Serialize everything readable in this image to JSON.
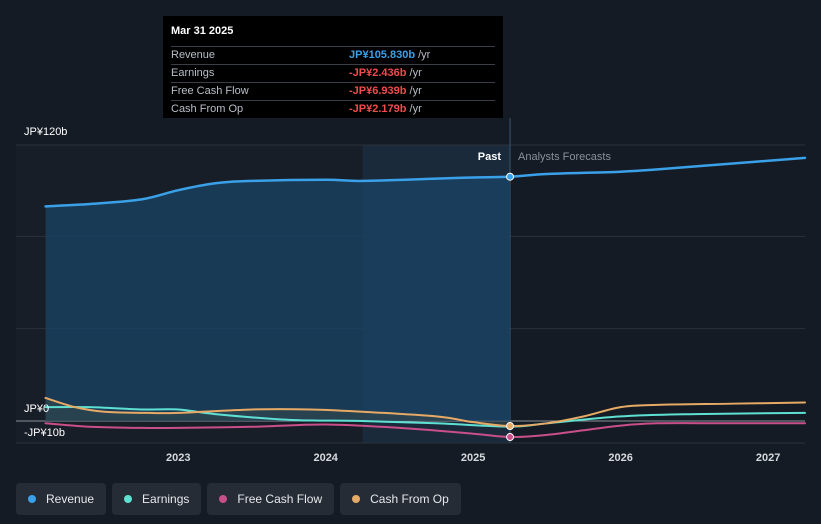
{
  "chart_data": {
    "type": "line",
    "title": "",
    "y_unit": "JP¥",
    "ylim": [
      -10,
      120
    ],
    "y_ticks": [
      {
        "value": 120,
        "label": "JP¥120b"
      },
      {
        "value": 0,
        "label": "JP¥0"
      },
      {
        "value": -10,
        "label": "-JP¥10b"
      }
    ],
    "x_ticks": [
      {
        "value": 2023,
        "label": "2023"
      },
      {
        "value": 2024,
        "label": "2024"
      },
      {
        "value": 2025,
        "label": "2025"
      },
      {
        "value": 2026,
        "label": "2026"
      },
      {
        "value": 2027,
        "label": "2027"
      }
    ],
    "xlim": [
      2021.9,
      2027.25
    ],
    "past_region_start": 2024.25,
    "divider_x": 2025.25,
    "past_label": "Past",
    "forecast_label": "Analysts Forecasts",
    "series": [
      {
        "name": "Revenue",
        "color": "#3aa0e8",
        "x": [
          2022.1,
          2022.4,
          2022.75,
          2023.0,
          2023.25,
          2023.5,
          2024.0,
          2024.25,
          2024.75,
          2025.0,
          2025.25,
          2025.5,
          2026.0,
          2026.25,
          2026.75,
          2027.25
        ],
        "values": [
          93,
          94,
          96,
          100,
          103,
          104,
          104.5,
          104,
          105,
          105.5,
          105.83,
          107,
          108,
          109,
          111.5,
          114
        ]
      },
      {
        "name": "Earnings",
        "color": "#5ee0d3",
        "x": [
          2022.1,
          2022.4,
          2022.75,
          2023.0,
          2023.25,
          2023.75,
          2024.25,
          2024.75,
          2025.25,
          2025.5,
          2026.0,
          2026.5,
          2027.25
        ],
        "values": [
          6,
          6,
          5,
          5,
          3,
          0.5,
          0,
          -1,
          -2.436,
          -1,
          2,
          3,
          3.5
        ]
      },
      {
        "name": "Free Cash Flow",
        "color": "#c94f8a",
        "x": [
          2022.1,
          2022.4,
          2022.75,
          2023.0,
          2023.5,
          2024.0,
          2024.5,
          2025.0,
          2025.25,
          2025.5,
          2025.75,
          2026.0,
          2026.25,
          2026.75,
          2027.25
        ],
        "values": [
          -1,
          -2.5,
          -3,
          -3,
          -2.5,
          -1.5,
          -3,
          -5.5,
          -6.939,
          -6,
          -4,
          -2,
          -1,
          -1,
          -1
        ]
      },
      {
        "name": "Cash From Op",
        "color": "#e6aa66",
        "x": [
          2022.1,
          2022.3,
          2022.5,
          2022.8,
          2023.0,
          2023.5,
          2023.9,
          2024.25,
          2024.75,
          2025.0,
          2025.25,
          2025.5,
          2025.75,
          2026.0,
          2026.25,
          2026.75,
          2027.25
        ],
        "values": [
          10,
          6,
          4,
          3.5,
          3.5,
          5,
          5,
          4,
          2,
          -0.5,
          -2.179,
          -1,
          2,
          6,
          7,
          7.5,
          8
        ]
      }
    ],
    "tooltip": {
      "date": "Mar 31 2025",
      "rows": [
        {
          "label": "Revenue",
          "value": "JP¥105.830b",
          "unit": "/yr",
          "color": "#3aa0e8"
        },
        {
          "label": "Earnings",
          "value": "-JP¥2.436b",
          "unit": "/yr",
          "color": "#ef4b4b"
        },
        {
          "label": "Free Cash Flow",
          "value": "-JP¥6.939b",
          "unit": "/yr",
          "color": "#ef4b4b"
        },
        {
          "label": "Cash From Op",
          "value": "-JP¥2.179b",
          "unit": "/yr",
          "color": "#ef4b4b"
        }
      ]
    },
    "legend": [
      {
        "name": "Revenue",
        "color": "#3aa0e8"
      },
      {
        "name": "Earnings",
        "color": "#5ee0d3"
      },
      {
        "name": "Free Cash Flow",
        "color": "#c94f8a"
      },
      {
        "name": "Cash From Op",
        "color": "#e6aa66"
      }
    ]
  }
}
